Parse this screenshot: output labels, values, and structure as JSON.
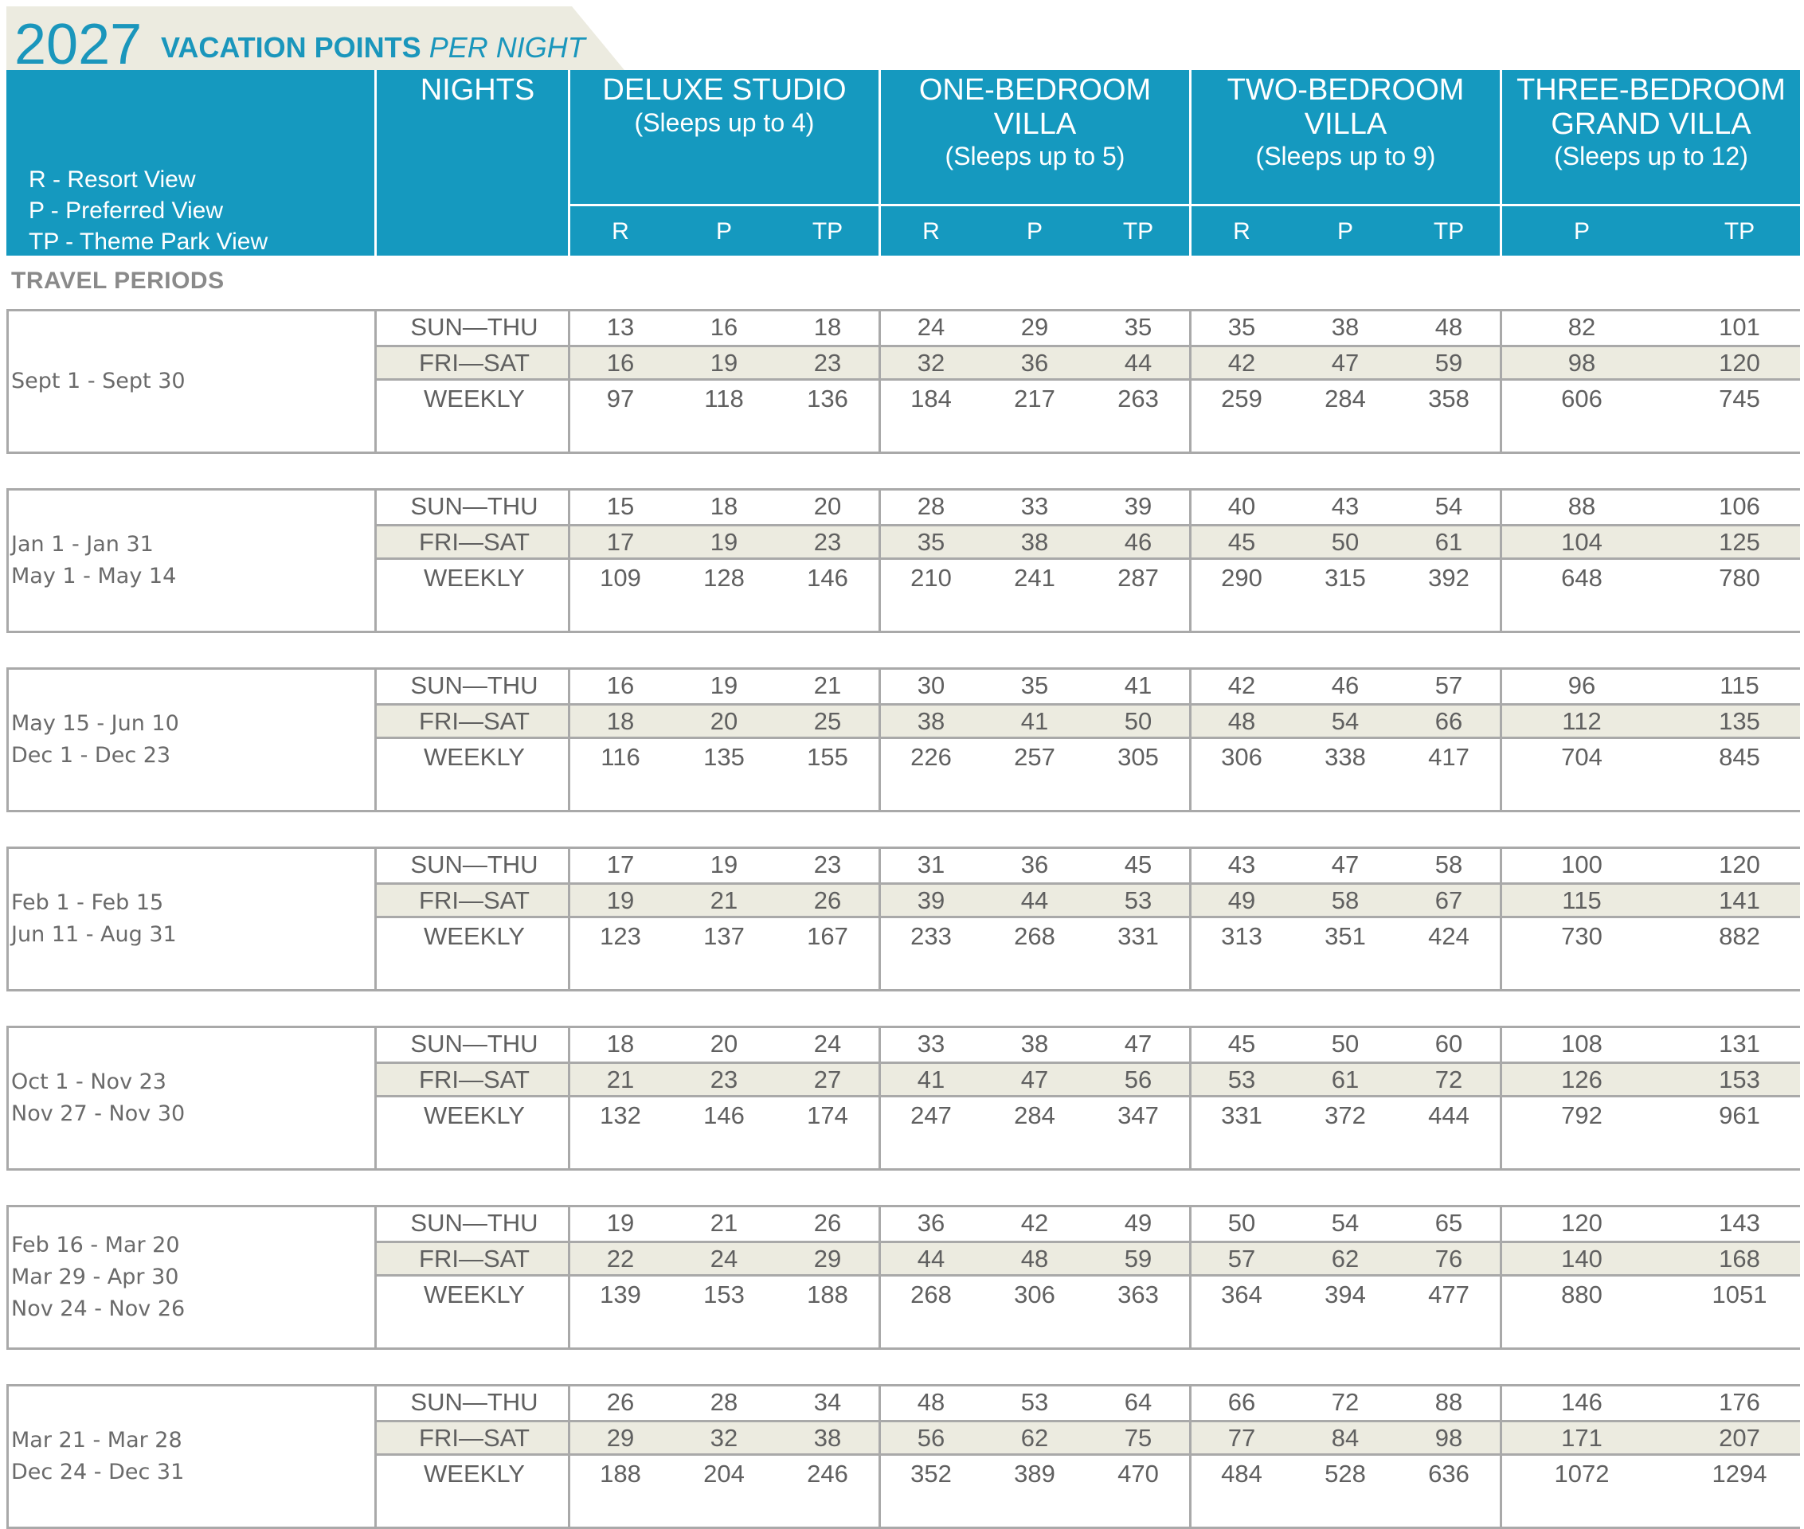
{
  "title": {
    "year": "2027",
    "bold_text": "VACATION POINTS",
    "italic_text": "PER NIGHT"
  },
  "legend": [
    "R - Resort View",
    "P - Preferred View",
    "TP - Theme Park View"
  ],
  "nights_header": "NIGHTS",
  "section_label": "TRAVEL PERIODS",
  "units": [
    {
      "name": [
        "DELUXE STUDIO"
      ],
      "sleeps": "(Sleeps up to 4)",
      "views": [
        "R",
        "P",
        "TP"
      ]
    },
    {
      "name": [
        "ONE-BEDROOM",
        "VILLA"
      ],
      "sleeps": "(Sleeps up to 5)",
      "views": [
        "R",
        "P",
        "TP"
      ]
    },
    {
      "name": [
        "TWO-BEDROOM",
        "VILLA"
      ],
      "sleeps": "(Sleeps up to 9)",
      "views": [
        "R",
        "P",
        "TP"
      ]
    },
    {
      "name": [
        "THREE-BEDROOM",
        "GRAND VILLA"
      ],
      "sleeps": "(Sleeps up to 12)",
      "views": [
        "P",
        "TP"
      ]
    }
  ],
  "night_labels": [
    "SUN—THU",
    "FRI—SAT",
    "WEEKLY"
  ],
  "blocks": [
    {
      "periods": [
        "Sept 1 - Sept 30"
      ],
      "rows": [
        [
          "13",
          "16",
          "18",
          "24",
          "29",
          "35",
          "35",
          "38",
          "48",
          "82",
          "101"
        ],
        [
          "16",
          "19",
          "23",
          "32",
          "36",
          "44",
          "42",
          "47",
          "59",
          "98",
          "120"
        ],
        [
          "97",
          "118",
          "136",
          "184",
          "217",
          "263",
          "259",
          "284",
          "358",
          "606",
          "745"
        ]
      ]
    },
    {
      "periods": [
        "Jan 1 - Jan 31",
        "May 1 - May 14"
      ],
      "rows": [
        [
          "15",
          "18",
          "20",
          "28",
          "33",
          "39",
          "40",
          "43",
          "54",
          "88",
          "106"
        ],
        [
          "17",
          "19",
          "23",
          "35",
          "38",
          "46",
          "45",
          "50",
          "61",
          "104",
          "125"
        ],
        [
          "109",
          "128",
          "146",
          "210",
          "241",
          "287",
          "290",
          "315",
          "392",
          "648",
          "780"
        ]
      ]
    },
    {
      "periods": [
        "May 15 - Jun 10",
        "Dec 1 - Dec 23"
      ],
      "rows": [
        [
          "16",
          "19",
          "21",
          "30",
          "35",
          "41",
          "42",
          "46",
          "57",
          "96",
          "115"
        ],
        [
          "18",
          "20",
          "25",
          "38",
          "41",
          "50",
          "48",
          "54",
          "66",
          "112",
          "135"
        ],
        [
          "116",
          "135",
          "155",
          "226",
          "257",
          "305",
          "306",
          "338",
          "417",
          "704",
          "845"
        ]
      ]
    },
    {
      "periods": [
        "Feb 1 - Feb 15",
        "Jun 11 - Aug 31"
      ],
      "rows": [
        [
          "17",
          "19",
          "23",
          "31",
          "36",
          "45",
          "43",
          "47",
          "58",
          "100",
          "120"
        ],
        [
          "19",
          "21",
          "26",
          "39",
          "44",
          "53",
          "49",
          "58",
          "67",
          "115",
          "141"
        ],
        [
          "123",
          "137",
          "167",
          "233",
          "268",
          "331",
          "313",
          "351",
          "424",
          "730",
          "882"
        ]
      ]
    },
    {
      "periods": [
        "Oct 1 - Nov 23",
        "Nov 27 - Nov 30"
      ],
      "rows": [
        [
          "18",
          "20",
          "24",
          "33",
          "38",
          "47",
          "45",
          "50",
          "60",
          "108",
          "131"
        ],
        [
          "21",
          "23",
          "27",
          "41",
          "47",
          "56",
          "53",
          "61",
          "72",
          "126",
          "153"
        ],
        [
          "132",
          "146",
          "174",
          "247",
          "284",
          "347",
          "331",
          "372",
          "444",
          "792",
          "961"
        ]
      ]
    },
    {
      "periods": [
        "Feb 16 - Mar 20",
        "Mar 29 - Apr 30",
        "Nov 24 - Nov 26"
      ],
      "rows": [
        [
          "19",
          "21",
          "26",
          "36",
          "42",
          "49",
          "50",
          "54",
          "65",
          "120",
          "143"
        ],
        [
          "22",
          "24",
          "29",
          "44",
          "48",
          "59",
          "57",
          "62",
          "76",
          "140",
          "168"
        ],
        [
          "139",
          "153",
          "188",
          "268",
          "306",
          "363",
          "364",
          "394",
          "477",
          "880",
          "1051"
        ]
      ]
    },
    {
      "periods": [
        "Mar 21 - Mar 28",
        "Dec 24 - Dec 31"
      ],
      "rows": [
        [
          "26",
          "28",
          "34",
          "48",
          "53",
          "64",
          "66",
          "72",
          "88",
          "146",
          "176"
        ],
        [
          "29",
          "32",
          "38",
          "56",
          "62",
          "75",
          "77",
          "84",
          "98",
          "171",
          "207"
        ],
        [
          "188",
          "204",
          "246",
          "352",
          "389",
          "470",
          "484",
          "528",
          "636",
          "1072",
          "1294"
        ]
      ]
    }
  ]
}
